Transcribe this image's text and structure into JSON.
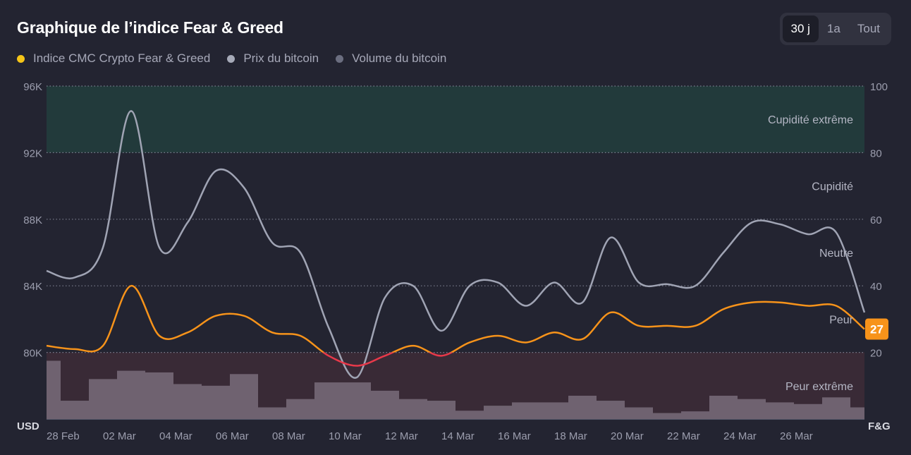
{
  "title": "Graphique de l’indice Fear & Greed",
  "range_buttons": [
    "30 j",
    "1a",
    "Tout"
  ],
  "active_range": "30 j",
  "legend": [
    {
      "label": "Indice CMC Crypto Fear & Greed",
      "color": "#f5c518"
    },
    {
      "label": "Prix du bitcoin",
      "color": "#a6aab8"
    },
    {
      "label": "Volume du bitcoin",
      "color": "#6b6e80"
    }
  ],
  "colors": {
    "fg_line": "#f7931a",
    "fg_line_fear_extreme": "#e8394a",
    "price_line": "#a0a4b4",
    "volume_bar": "#6f6270",
    "greed_zone": "#223a3b",
    "fear_zone": "#392a36",
    "badge": "#f7931a"
  },
  "chart_data": {
    "type": "line",
    "left_axis": {
      "label": "USD",
      "ticks": [
        "80K",
        "84K",
        "88K",
        "92K",
        "96K"
      ],
      "tick_values": [
        80000,
        84000,
        88000,
        92000,
        96000
      ],
      "ylim": [
        76000,
        96000
      ]
    },
    "right_axis": {
      "label": "F&G",
      "ticks": [
        "20",
        "40",
        "60",
        "80",
        "100"
      ],
      "tick_values": [
        20,
        40,
        60,
        80,
        100
      ],
      "ylim": [
        0,
        100
      ]
    },
    "x_ticks": [
      "28 Feb",
      "02 Mar",
      "04 Mar",
      "06 Mar",
      "08 Mar",
      "10 Mar",
      "12 Mar",
      "14 Mar",
      "16 Mar",
      "18 Mar",
      "20 Mar",
      "22 Mar",
      "24 Mar",
      "26 Mar"
    ],
    "zones": [
      {
        "label": "Cupidité extrême",
        "from": 80,
        "to": 100
      },
      {
        "label": "Cupidité",
        "from": 60,
        "to": 80
      },
      {
        "label": "Neutre",
        "from": 40,
        "to": 60
      },
      {
        "label": "Peur",
        "from": 20,
        "to": 40
      },
      {
        "label": "Peur extrême",
        "from": 0,
        "to": 20
      }
    ],
    "series": [
      {
        "name": "Indice CMC Crypto Fear & Greed",
        "axis": "right",
        "values": [
          22,
          21,
          22,
          40,
          25,
          26,
          31,
          31,
          26,
          25,
          19,
          16,
          19,
          22,
          19,
          23,
          25,
          23,
          26,
          24,
          32,
          28,
          28,
          28,
          33,
          35,
          35,
          34,
          34,
          27
        ]
      },
      {
        "name": "Prix du bitcoin",
        "axis": "left",
        "values": [
          84900,
          84500,
          86300,
          94500,
          86300,
          87800,
          90900,
          89900,
          86600,
          86000,
          81500,
          78500,
          83300,
          84000,
          81300,
          84000,
          84200,
          82800,
          84200,
          83000,
          86900,
          84200,
          84100,
          84000,
          86000,
          87800,
          87700,
          87100,
          87200,
          82400
        ]
      },
      {
        "name": "Volume du bitcoin",
        "axis": "right",
        "values": [
          17.5,
          5.5,
          12,
          14.5,
          14,
          10.5,
          10,
          13.5,
          3.5,
          6,
          11,
          11,
          8.5,
          6,
          5.5,
          2.5,
          4,
          5,
          5,
          7,
          5.5,
          3.5,
          1.8,
          2.3,
          7,
          6,
          5,
          4.5,
          6.5,
          3.5
        ]
      }
    ],
    "current_value": 27
  }
}
